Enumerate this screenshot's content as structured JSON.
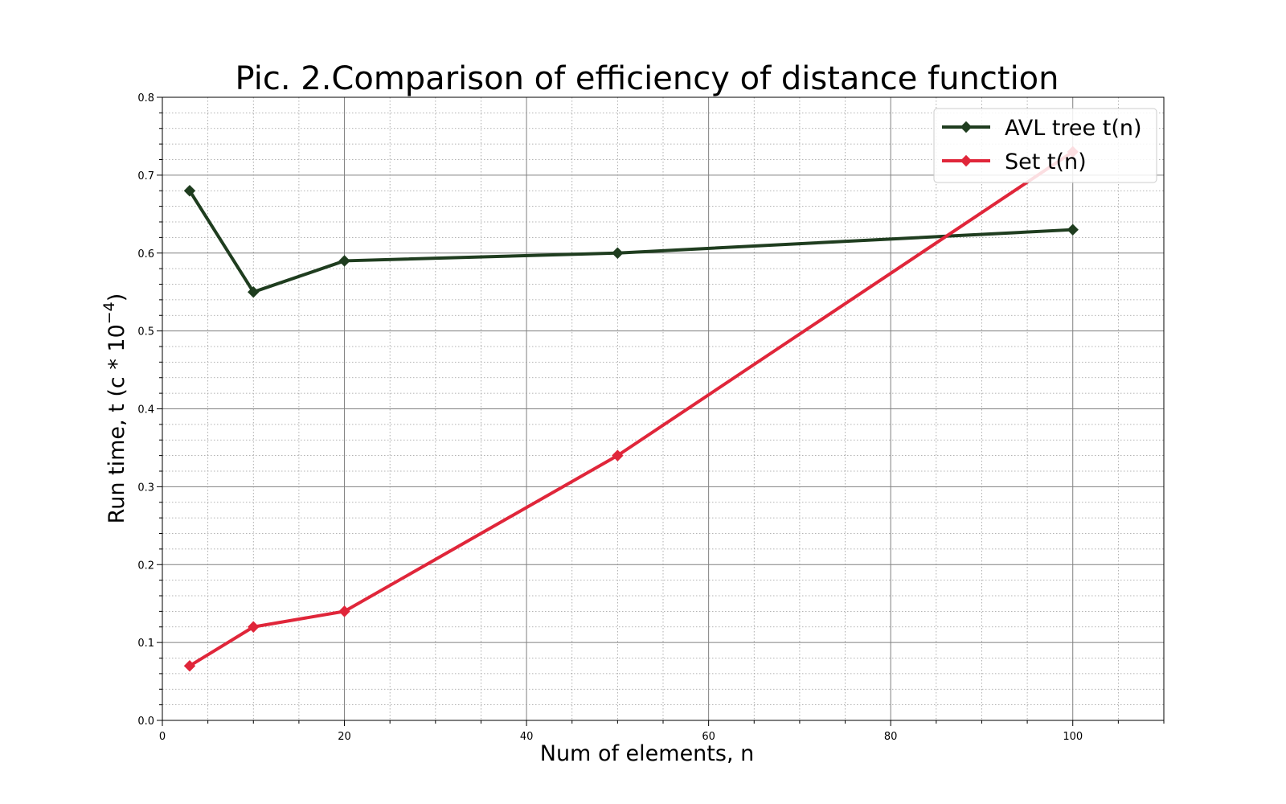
{
  "chart_data": {
    "type": "line",
    "title": "Pic. 2.Comparison of efficiency of distance function",
    "xlabel": "Num of elements, n",
    "ylabel_text": "Run time, t (c * 10",
    "ylabel_exponent": "−4",
    "ylabel_close": ")",
    "xlim": [
      0,
      110
    ],
    "ylim": [
      0,
      0.8
    ],
    "xticks": [
      0,
      20,
      40,
      60,
      80,
      100
    ],
    "yticks": [
      0.0,
      0.1,
      0.2,
      0.3,
      0.4,
      0.5,
      0.6,
      0.7,
      0.8
    ],
    "xtick_labels": [
      "0",
      "20",
      "40",
      "60",
      "80",
      "100"
    ],
    "ytick_labels": [
      "0.0",
      "0.1",
      "0.2",
      "0.3",
      "0.4",
      "0.5",
      "0.6",
      "0.7",
      "0.8"
    ],
    "x_minor_step": 5,
    "y_minor_step": 0.02,
    "grid": true,
    "legend_position": "top-right",
    "series": [
      {
        "name": "AVL tree t(n)",
        "color": "#1f3d1f",
        "marker": "diamond",
        "x": [
          3,
          10,
          20,
          50,
          100
        ],
        "y": [
          0.68,
          0.55,
          0.59,
          0.6,
          0.63
        ]
      },
      {
        "name": "Set t(n)",
        "color": "#e0263a",
        "marker": "diamond",
        "x": [
          3,
          10,
          20,
          50,
          100
        ],
        "y": [
          0.07,
          0.12,
          0.14,
          0.34,
          0.73
        ]
      }
    ]
  }
}
